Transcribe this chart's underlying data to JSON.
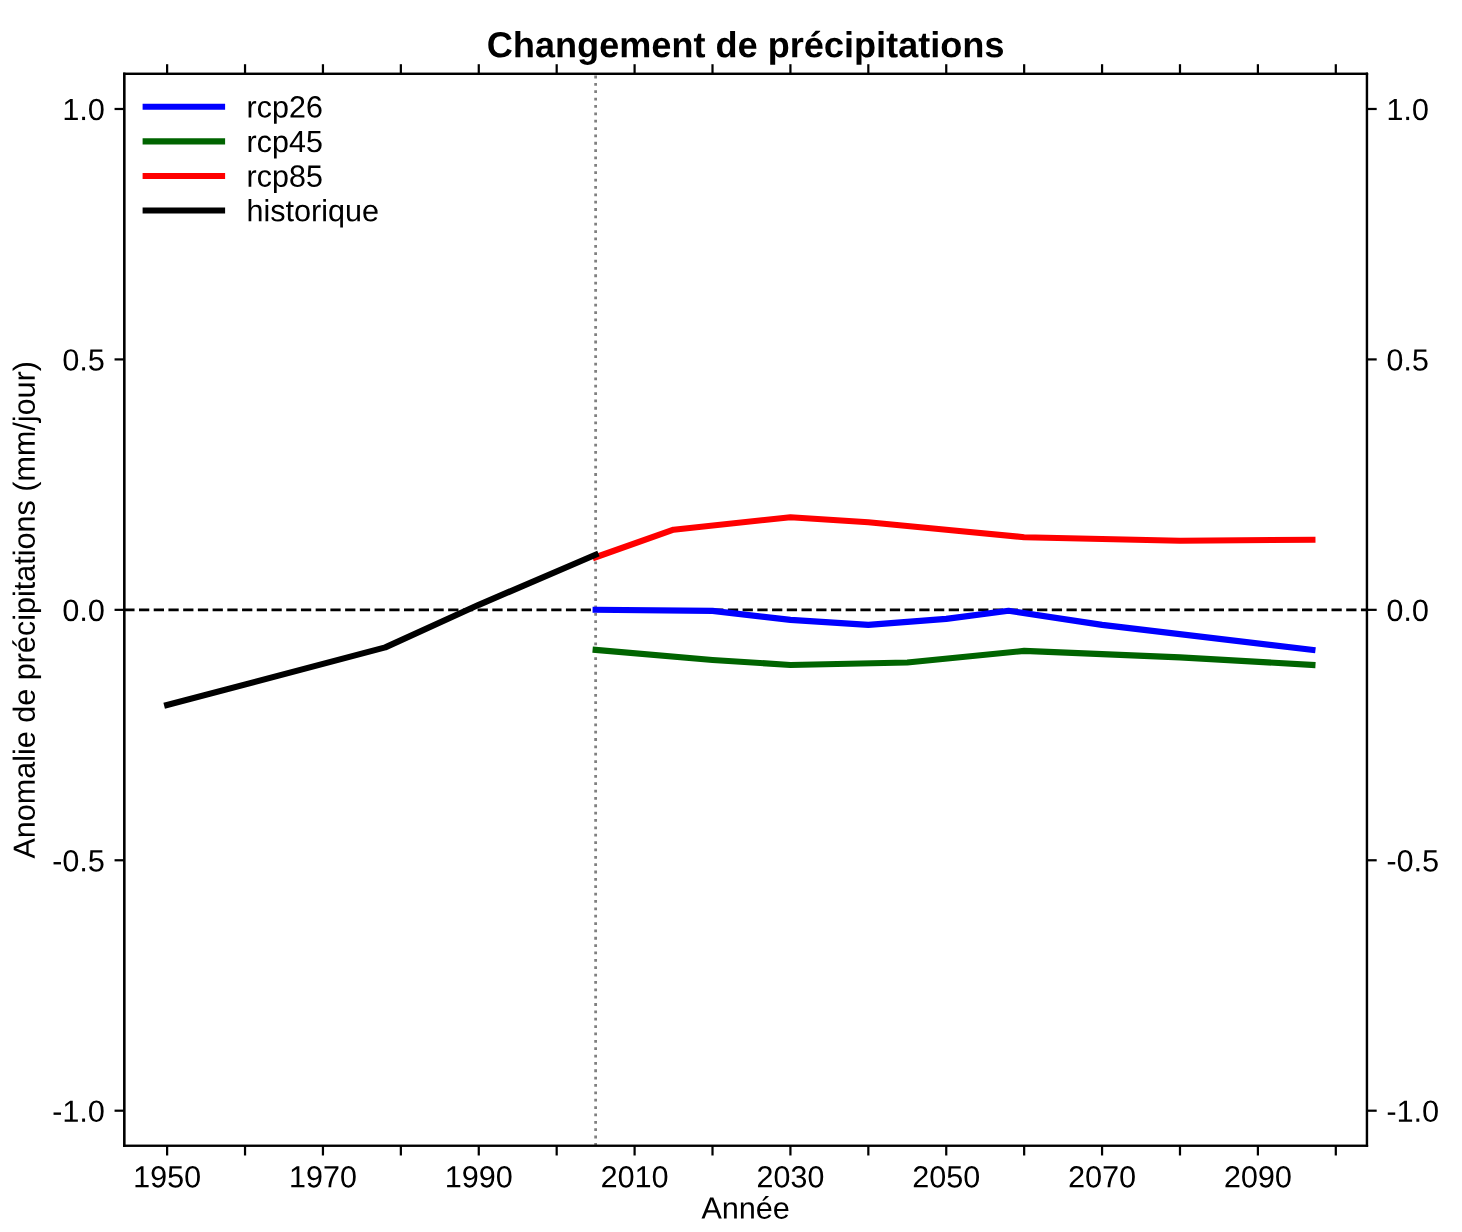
{
  "chart_data": {
    "type": "line",
    "title": "Changement de précipitations",
    "xlabel": "Année",
    "ylabel": "Anomalie de précipitations (mm/jour)",
    "xlim": [
      1944.5,
      2104
    ],
    "xticks": [
      1950,
      {
        "value": 1960,
        "label": null
      },
      1970,
      {
        "value": 1980,
        "label": null
      },
      1990,
      {
        "value": 2000,
        "label": null
      },
      2010,
      {
        "value": 2020,
        "label": null
      },
      2030,
      {
        "value": 2040,
        "label": null
      },
      2050,
      {
        "value": 2060,
        "label": null
      },
      2070,
      {
        "value": 2080,
        "label": null
      },
      2090,
      {
        "value": 2100,
        "label": null
      }
    ],
    "ylim": [
      -1.07,
      1.07
    ],
    "yticks": [
      {
        "value": -1,
        "label": "-1.0"
      },
      -0.5,
      {
        "value": 0,
        "label": "0.0"
      },
      0.5,
      {
        "value": 1,
        "label": "1.0"
      }
    ],
    "y2lim": [
      -1.07,
      1.07
    ],
    "y2ticks": [
      {
        "value": -1,
        "label": "-1.0"
      },
      -0.5,
      {
        "value": 0,
        "label": "0.0"
      },
      0.5,
      {
        "value": 1,
        "label": "1.0"
      }
    ],
    "grid": false,
    "legend": "top left",
    "line_style": "solid",
    "marker": "none",
    "series": [
      {
        "name": "rcp26",
        "color": "#0000ff",
        "x": [
          2005,
          2020,
          2030,
          2040,
          2050,
          2058,
          2070,
          2097
        ],
        "values": [
          0.0,
          -0.002,
          -0.02,
          -0.03,
          -0.018,
          -0.002,
          -0.03,
          -0.08
        ]
      },
      {
        "name": "rcp45",
        "color": "#006400",
        "x": [
          2005,
          2020,
          2030,
          2045,
          2060,
          2080,
          2097
        ],
        "values": [
          -0.08,
          -0.1,
          -0.11,
          -0.105,
          -0.082,
          -0.095,
          -0.11
        ]
      },
      {
        "name": "rcp85",
        "color": "#ff0000",
        "x": [
          2005,
          2015,
          2030,
          2040,
          2050,
          2060,
          2080,
          2097
        ],
        "values": [
          0.105,
          0.16,
          0.185,
          0.175,
          0.16,
          0.145,
          0.138,
          0.14
        ]
      },
      {
        "name": "historique",
        "color": "#000000",
        "x": [
          1950,
          1978,
          1990,
          2005
        ],
        "values": [
          -0.19,
          -0.075,
          0.01,
          0.11
        ]
      }
    ],
    "ref_lines": [
      {
        "axis": "y",
        "value": 0.0,
        "label": null,
        "color": "#000000",
        "line_style": "dashed"
      },
      {
        "axis": "x",
        "value": 2005,
        "label": null,
        "color": "#808080",
        "line_style": "dotted"
      }
    ]
  }
}
